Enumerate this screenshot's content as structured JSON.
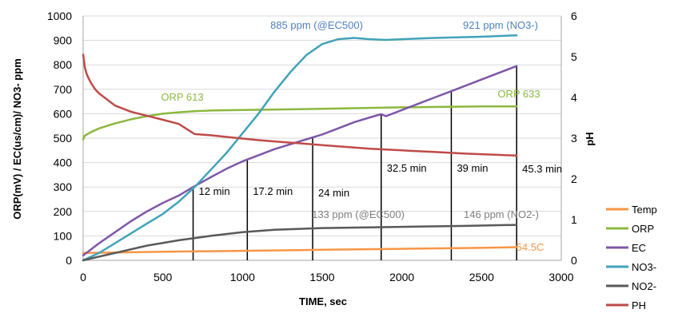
{
  "chart_data": {
    "type": "line",
    "title": "",
    "xlabel": "TIME, sec",
    "ylabel": "ORP(mV) / EC(us/cm)/ NO3- ppm",
    "y2label": "pH",
    "xlim": [
      0,
      3000
    ],
    "ylim": [
      0,
      1000
    ],
    "y2lim": [
      0,
      6
    ],
    "x_ticks": [
      "0",
      "500",
      "1000",
      "1500",
      "2000",
      "2500",
      "3000"
    ],
    "y_ticks": [
      "0",
      "100",
      "200",
      "300",
      "400",
      "500",
      "600",
      "700",
      "800",
      "900",
      "1000"
    ],
    "y2_ticks": [
      "0",
      "1",
      "2",
      "3",
      "4",
      "5",
      "6"
    ],
    "grid": "horizontal",
    "legend_position": "right",
    "series": [
      {
        "name": "Temp",
        "axis": "left",
        "color": "#f79646",
        "points": [
          [
            0,
            30
          ],
          [
            500,
            35
          ],
          [
            1000,
            39
          ],
          [
            1500,
            43
          ],
          [
            2000,
            47
          ],
          [
            2500,
            51
          ],
          [
            2720,
            54
          ]
        ]
      },
      {
        "name": "ORP",
        "axis": "left",
        "color": "#8cb83f",
        "points": [
          [
            0,
            495
          ],
          [
            10,
            510
          ],
          [
            50,
            525
          ],
          [
            100,
            540
          ],
          [
            200,
            560
          ],
          [
            300,
            577
          ],
          [
            400,
            590
          ],
          [
            500,
            600
          ],
          [
            600,
            606
          ],
          [
            700,
            610
          ],
          [
            800,
            613
          ],
          [
            1000,
            615
          ],
          [
            1500,
            620
          ],
          [
            2000,
            626
          ],
          [
            2500,
            630
          ],
          [
            2720,
            630
          ]
        ]
      },
      {
        "name": "EC",
        "axis": "left",
        "color": "#7e57a8",
        "points": [
          [
            0,
            20
          ],
          [
            100,
            70
          ],
          [
            200,
            115
          ],
          [
            300,
            160
          ],
          [
            400,
            200
          ],
          [
            500,
            235
          ],
          [
            600,
            265
          ],
          [
            690,
            300
          ],
          [
            800,
            340
          ],
          [
            900,
            375
          ],
          [
            1000,
            405
          ],
          [
            1100,
            430
          ],
          [
            1200,
            455
          ],
          [
            1300,
            475
          ],
          [
            1400,
            495
          ],
          [
            1500,
            515
          ],
          [
            1600,
            540
          ],
          [
            1700,
            565
          ],
          [
            1800,
            585
          ],
          [
            1870,
            598
          ],
          [
            1900,
            590
          ],
          [
            2000,
            615
          ],
          [
            2200,
            665
          ],
          [
            2300,
            690
          ],
          [
            2500,
            740
          ],
          [
            2720,
            795
          ]
        ]
      },
      {
        "name": "NO3-",
        "axis": "left",
        "color": "#41a3b9",
        "points": [
          [
            0,
            0
          ],
          [
            100,
            30
          ],
          [
            200,
            70
          ],
          [
            300,
            110
          ],
          [
            400,
            150
          ],
          [
            500,
            190
          ],
          [
            600,
            240
          ],
          [
            700,
            300
          ],
          [
            800,
            370
          ],
          [
            900,
            440
          ],
          [
            1000,
            520
          ],
          [
            1100,
            600
          ],
          [
            1200,
            690
          ],
          [
            1300,
            770
          ],
          [
            1400,
            840
          ],
          [
            1500,
            885
          ],
          [
            1600,
            905
          ],
          [
            1700,
            910
          ],
          [
            1800,
            905
          ],
          [
            1900,
            902
          ],
          [
            2000,
            905
          ],
          [
            2200,
            910
          ],
          [
            2500,
            915
          ],
          [
            2720,
            921
          ]
        ]
      },
      {
        "name": "NO2-",
        "axis": "left",
        "color": "#595959",
        "points": [
          [
            0,
            0
          ],
          [
            200,
            30
          ],
          [
            400,
            60
          ],
          [
            600,
            82
          ],
          [
            800,
            100
          ],
          [
            1000,
            115
          ],
          [
            1200,
            125
          ],
          [
            1500,
            132
          ],
          [
            1800,
            135
          ],
          [
            2100,
            138
          ],
          [
            2400,
            141
          ],
          [
            2720,
            145
          ]
        ]
      },
      {
        "name": "PH",
        "axis": "right",
        "color": "#be4b48",
        "points": [
          [
            0,
            5.05
          ],
          [
            5,
            4.9
          ],
          [
            10,
            4.75
          ],
          [
            20,
            4.6
          ],
          [
            30,
            4.5
          ],
          [
            50,
            4.35
          ],
          [
            75,
            4.2
          ],
          [
            100,
            4.1
          ],
          [
            150,
            3.95
          ],
          [
            200,
            3.8
          ],
          [
            300,
            3.65
          ],
          [
            400,
            3.55
          ],
          [
            500,
            3.45
          ],
          [
            600,
            3.35
          ],
          [
            700,
            3.1
          ],
          [
            800,
            3.07
          ],
          [
            900,
            3.03
          ],
          [
            1000,
            2.99
          ],
          [
            1100,
            2.95
          ],
          [
            1200,
            2.92
          ],
          [
            1300,
            2.89
          ],
          [
            1400,
            2.86
          ],
          [
            1500,
            2.83
          ],
          [
            1600,
            2.8
          ],
          [
            1700,
            2.77
          ],
          [
            1800,
            2.74
          ],
          [
            1900,
            2.72
          ],
          [
            2000,
            2.7
          ],
          [
            2200,
            2.66
          ],
          [
            2400,
            2.62
          ],
          [
            2600,
            2.59
          ],
          [
            2720,
            2.57
          ]
        ]
      }
    ],
    "time_markers": [
      {
        "x": 690,
        "label": "12 min"
      },
      {
        "x": 1030,
        "label": "17.2 min"
      },
      {
        "x": 1440,
        "label": "24 min"
      },
      {
        "x": 1870,
        "label": "32.5 min"
      },
      {
        "x": 2310,
        "label": "39 min"
      },
      {
        "x": 2720,
        "label": "45.3 min"
      }
    ],
    "annotations": [
      {
        "text": "885 ppm (@EC500)",
        "color": "#4f81bd"
      },
      {
        "text": "921 ppm (NO3-)",
        "color": "#4f81bd"
      },
      {
        "text": "ORP 613",
        "color": "#8cb83f"
      },
      {
        "text": "ORP 633",
        "color": "#8cb83f"
      },
      {
        "text": "133 ppm (@EC500)",
        "color": "#7f7f7f"
      },
      {
        "text": "146 ppm (NO2-)",
        "color": "#7f7f7f"
      },
      {
        "text": "54.5C",
        "color": "#f79646"
      }
    ]
  }
}
